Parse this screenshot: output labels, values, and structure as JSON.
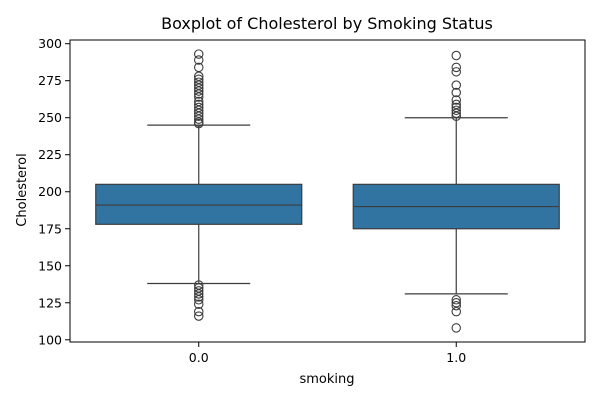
{
  "chart_data": {
    "type": "boxplot",
    "title": "Boxplot of Cholesterol by Smoking Status",
    "xlabel": "smoking",
    "ylabel": "Cholesterol",
    "ylim": [
      98.5,
      302.5
    ],
    "yticks": [
      100,
      125,
      150,
      175,
      200,
      225,
      250,
      275,
      300
    ],
    "grid": false,
    "box_color": "#3274a1",
    "line_color": "#3d3d3d",
    "categories": [
      "0.0",
      "1.0"
    ],
    "boxes": [
      {
        "category": "0.0",
        "whisker_low": 138,
        "q1": 178,
        "median": 191,
        "q3": 205,
        "whisker_high": 245,
        "outliers": [
          293,
          289,
          284,
          278,
          276,
          274,
          272,
          270,
          268,
          266,
          264,
          261,
          259,
          257,
          255,
          253,
          251,
          249,
          247,
          246,
          137,
          135,
          133,
          131,
          129,
          127,
          124,
          119,
          116
        ]
      },
      {
        "category": "1.0",
        "whisker_low": 131,
        "q1": 175,
        "median": 190,
        "q3": 205,
        "whisker_high": 250,
        "outliers": [
          292,
          284,
          281,
          272,
          267,
          262,
          259,
          257,
          255,
          253,
          251,
          127,
          125,
          123,
          119,
          108
        ]
      }
    ]
  }
}
